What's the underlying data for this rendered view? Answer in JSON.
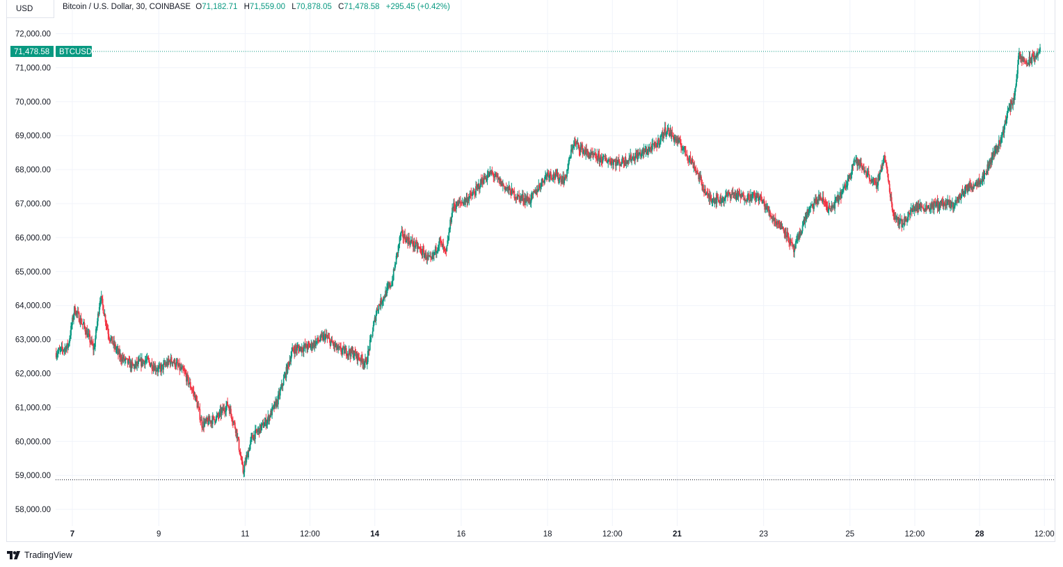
{
  "currency_button": "USD",
  "legend": {
    "symbol": "Bitcoin / U.S. Dollar, 30, COINBASE",
    "open_label": "O",
    "open": "71,182.71",
    "high_label": "H",
    "high": "71,559.00",
    "low_label": "L",
    "low": "70,878.05",
    "close_label": "C",
    "close": "71,478.58",
    "change": "+295.45 (+0.42%)"
  },
  "price_label": {
    "value": "71,478.58",
    "ticker": "BTCUSD"
  },
  "branding": "TradingView",
  "colors": {
    "up": "#089981",
    "down": "#f23645",
    "grid": "#f0f3fa",
    "dotted": "#131722"
  },
  "chart_data": {
    "type": "candlestick",
    "interval": "30",
    "y_ticks": [
      "72,000.00",
      "71,000.00",
      "70,000.00",
      "69,000.00",
      "68,000.00",
      "67,000.00",
      "66,000.00",
      "65,000.00",
      "64,000.00",
      "63,000.00",
      "62,000.00",
      "61,000.00",
      "60,000.00",
      "59,000.00",
      "58,000.00"
    ],
    "ylim": [
      57500,
      72500
    ],
    "x_ticks": [
      {
        "label": "7",
        "bold": true,
        "t": 1
      },
      {
        "label": "9",
        "bold": false,
        "t": 5
      },
      {
        "label": "11",
        "bold": false,
        "t": 9
      },
      {
        "label": "12:00",
        "bold": false,
        "t": 12
      },
      {
        "label": "14",
        "bold": true,
        "t": 15
      },
      {
        "label": "16",
        "bold": false,
        "t": 19
      },
      {
        "label": "18",
        "bold": false,
        "t": 23
      },
      {
        "label": "12:00",
        "bold": false,
        "t": 26
      },
      {
        "label": "21",
        "bold": true,
        "t": 29
      },
      {
        "label": "23",
        "bold": false,
        "t": 33
      },
      {
        "label": "25",
        "bold": false,
        "t": 37
      },
      {
        "label": "12:00",
        "bold": false,
        "t": 40
      },
      {
        "label": "28",
        "bold": true,
        "t": 43
      },
      {
        "label": "12:00",
        "bold": false,
        "t": 46
      }
    ],
    "current_price": 71478.58,
    "period_low": 58870,
    "path": [
      [
        0.25,
        62600
      ],
      [
        0.8,
        62800
      ],
      [
        1.1,
        63900
      ],
      [
        1.6,
        63300
      ],
      [
        2.0,
        62700
      ],
      [
        2.3,
        64300
      ],
      [
        2.7,
        63100
      ],
      [
        3.2,
        62500
      ],
      [
        3.8,
        62200
      ],
      [
        4.4,
        62400
      ],
      [
        5.0,
        62100
      ],
      [
        5.6,
        62400
      ],
      [
        6.2,
        62000
      ],
      [
        6.7,
        61300
      ],
      [
        7.0,
        60500
      ],
      [
        7.7,
        60700
      ],
      [
        8.2,
        61100
      ],
      [
        8.6,
        60300
      ],
      [
        8.9,
        59100
      ],
      [
        9.3,
        60100
      ],
      [
        10.0,
        60600
      ],
      [
        10.5,
        61200
      ],
      [
        11.2,
        62700
      ],
      [
        12.0,
        62800
      ],
      [
        12.7,
        63100
      ],
      [
        13.3,
        62700
      ],
      [
        14.0,
        62600
      ],
      [
        14.6,
        62300
      ],
      [
        15.1,
        63900
      ],
      [
        15.8,
        64700
      ],
      [
        16.2,
        66100
      ],
      [
        17.0,
        65700
      ],
      [
        17.6,
        65300
      ],
      [
        18.0,
        65900
      ],
      [
        18.3,
        65500
      ],
      [
        18.6,
        66900
      ],
      [
        19.2,
        67100
      ],
      [
        19.6,
        67300
      ],
      [
        20.0,
        67700
      ],
      [
        20.4,
        67900
      ],
      [
        21.0,
        67500
      ],
      [
        21.6,
        67200
      ],
      [
        22.2,
        67100
      ],
      [
        23.0,
        67900
      ],
      [
        23.8,
        67700
      ],
      [
        24.2,
        68800
      ],
      [
        25.0,
        68400
      ],
      [
        25.6,
        68300
      ],
      [
        26.3,
        68200
      ],
      [
        27.1,
        68400
      ],
      [
        28.0,
        68700
      ],
      [
        28.5,
        69200
      ],
      [
        29.2,
        68700
      ],
      [
        29.8,
        68100
      ],
      [
        30.4,
        67200
      ],
      [
        31.0,
        67100
      ],
      [
        31.5,
        67300
      ],
      [
        32.0,
        67200
      ],
      [
        32.8,
        67200
      ],
      [
        33.4,
        66600
      ],
      [
        34.0,
        66200
      ],
      [
        34.4,
        65600
      ],
      [
        35.0,
        66700
      ],
      [
        35.6,
        67200
      ],
      [
        36.1,
        66800
      ],
      [
        36.8,
        67500
      ],
      [
        37.2,
        68300
      ],
      [
        37.8,
        67900
      ],
      [
        38.2,
        67500
      ],
      [
        38.6,
        68400
      ],
      [
        39.0,
        66700
      ],
      [
        39.4,
        66400
      ],
      [
        40.0,
        66900
      ],
      [
        40.6,
        66900
      ],
      [
        41.2,
        67000
      ],
      [
        41.8,
        66950
      ],
      [
        42.3,
        67400
      ],
      [
        42.8,
        67600
      ],
      [
        43.2,
        67800
      ],
      [
        43.6,
        68400
      ],
      [
        44.0,
        68900
      ],
      [
        44.3,
        69700
      ],
      [
        44.6,
        70100
      ],
      [
        44.8,
        71300
      ],
      [
        45.2,
        71150
      ],
      [
        45.5,
        71300
      ],
      [
        45.8,
        71480
      ]
    ]
  }
}
